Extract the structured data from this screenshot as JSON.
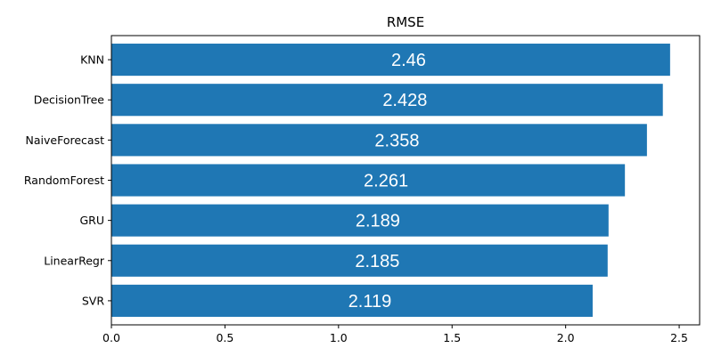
{
  "chart_data": {
    "type": "bar",
    "orientation": "horizontal",
    "title": "RMSE",
    "xlabel": "",
    "ylabel": "",
    "categories": [
      "KNN",
      "DecisionTree",
      "NaiveForecast",
      "RandomForest",
      "GRU",
      "LinearRegr",
      "SVR"
    ],
    "values": [
      2.46,
      2.428,
      2.358,
      2.261,
      2.189,
      2.185,
      2.119
    ],
    "data_labels": [
      "2.46",
      "2.428",
      "2.358",
      "2.261",
      "2.189",
      "2.185",
      "2.119"
    ],
    "xlim": [
      0,
      2.59
    ],
    "xticks": [
      0.0,
      0.5,
      1.0,
      1.5,
      2.0,
      2.5
    ],
    "xtick_labels": [
      "0.0",
      "0.5",
      "1.0",
      "1.5",
      "2.0",
      "2.5"
    ],
    "bar_color": "#1f77b4",
    "label_color": "#ffffff",
    "grid": false,
    "legend": "none"
  }
}
